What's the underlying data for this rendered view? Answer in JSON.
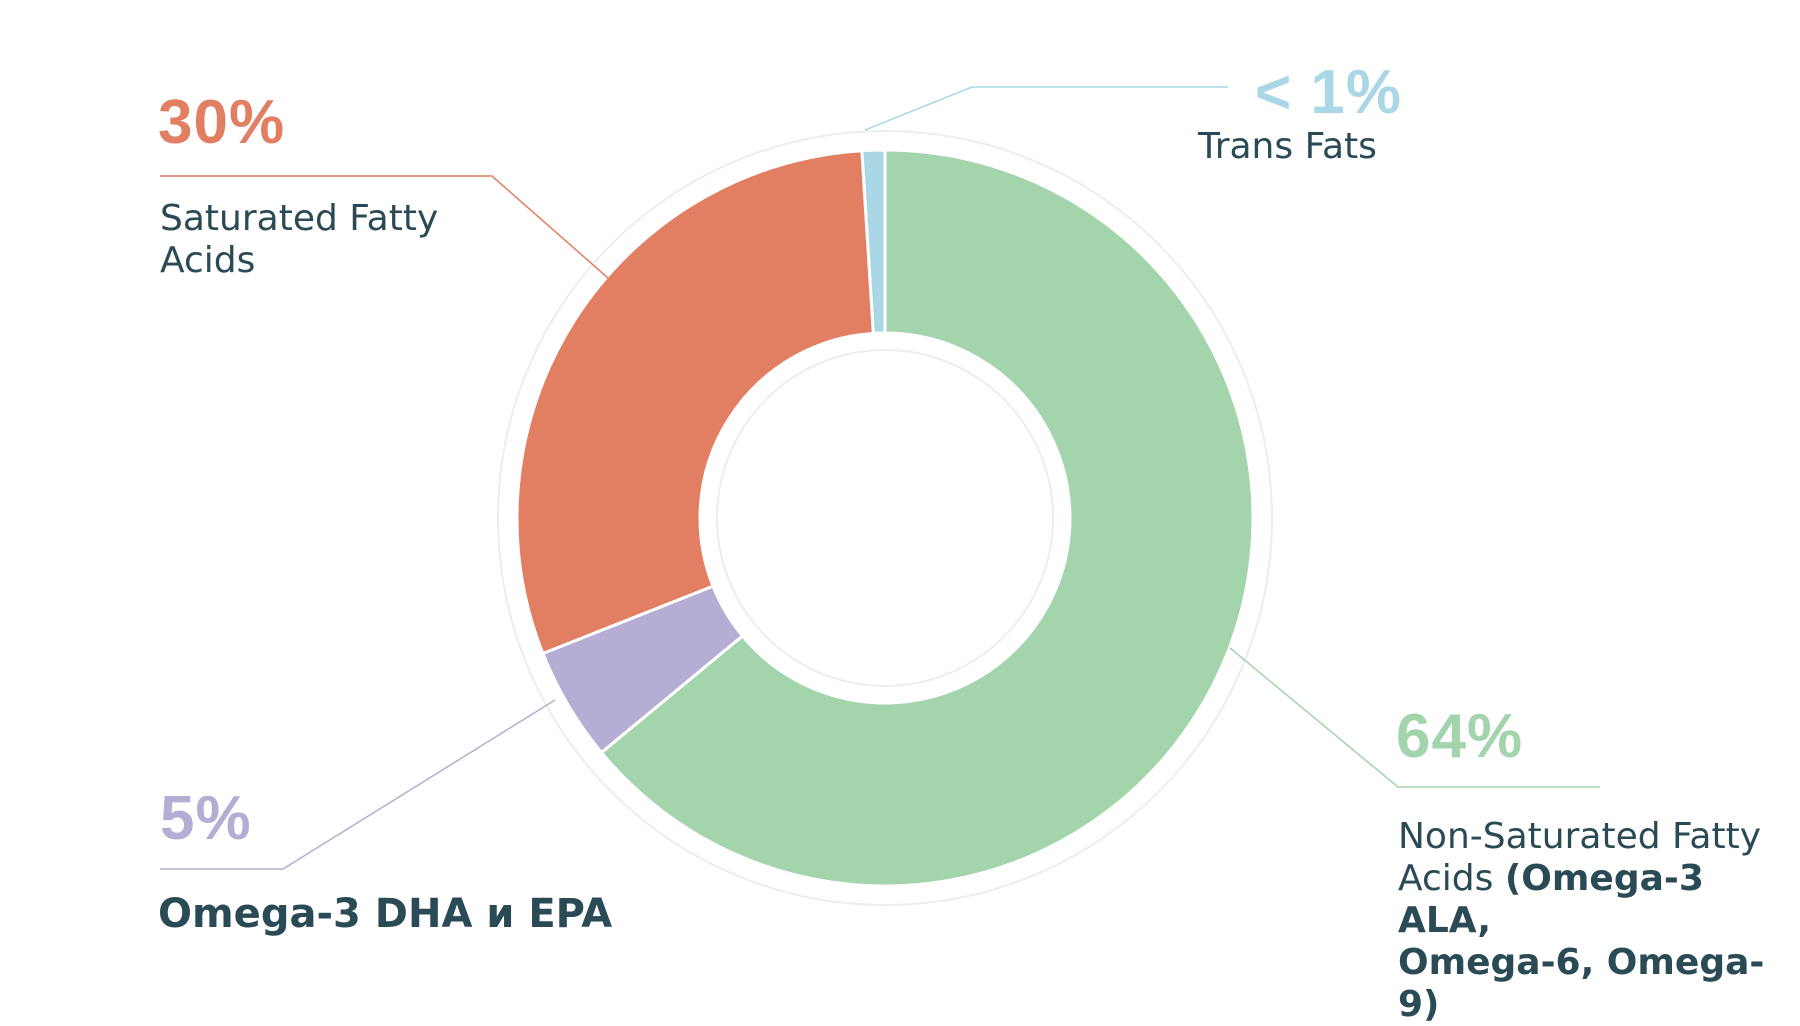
{
  "chart_data": {
    "type": "pie",
    "donut": true,
    "slices": [
      {
        "label": "Non-Saturated Fatty Acids (Omega-3 ALA, Omega-6, Omega-9)",
        "value": 64,
        "pct_text": "64%",
        "color": "#a3d4ab"
      },
      {
        "label": "Omega-3 DHA и EPA",
        "value": 5,
        "pct_text": "5%",
        "color": "#b5add3"
      },
      {
        "label": "Saturated Fatty Acids",
        "value": 30,
        "pct_text": "30%",
        "color": "#e27f62"
      },
      {
        "label": "Trans Fats",
        "value": 1,
        "pct_text": "< 1%",
        "color": "#a9d7e6"
      }
    ]
  },
  "labels": {
    "trans": {
      "pct": "< 1%",
      "line1": "Trans Fats"
    },
    "saturated": {
      "pct": "30%",
      "line1": "Saturated Fatty",
      "line2": "Acids"
    },
    "omega3": {
      "pct": "5%",
      "line1": "Omega-3 DHA и EPA"
    },
    "nonsat": {
      "pct": "64%",
      "line1": "Non-Saturated Fatty",
      "line2a": "Acids ",
      "line2b": "(Omega-3  ALA,",
      "line3": "Omega-6, Omega-9)"
    }
  },
  "colors": {
    "text": "#2a4a55",
    "ring": "#ededed"
  }
}
